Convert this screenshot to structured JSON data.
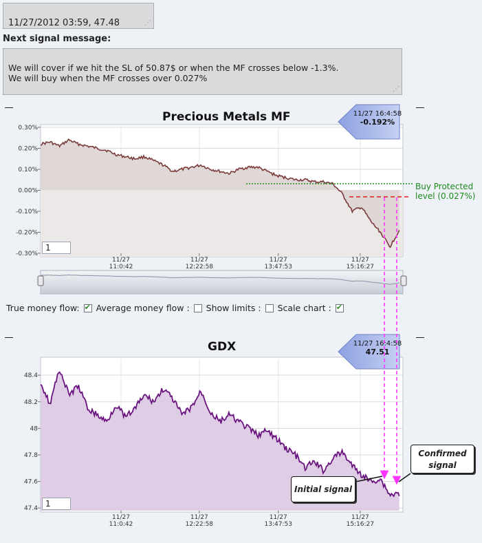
{
  "timestamp_box": {
    "value": "11/27/2012 03:59, 47.48"
  },
  "signal": {
    "label": "Next signal message:",
    "message": "We will cover if we hit the SL of 50.87$ or when the MF crosses below -1.3%.\nWe will buy when the MF crosses over 0.027%"
  },
  "mf_chart": {
    "title": "Precious Metals MF",
    "flag_time": "11/27 16:4:58",
    "flag_value": "-0.192%",
    "zoom_value": "1",
    "buy_protected_label": "Buy Protected level (0.027%)",
    "ytick_labels": [
      "0.30%",
      "0.20%",
      "0.10%",
      "0.00%",
      "-0.10%",
      "-0.20%",
      "-0.30%"
    ],
    "xtick_dates": [
      "11/27",
      "11/27",
      "11/27",
      "11/27"
    ],
    "xtick_times": [
      "11:0:42",
      "12:22:58",
      "13:47:53",
      "15:16:27"
    ]
  },
  "controls": {
    "true_money_flow": "True money flow:",
    "average_money_flow": "Average money flow :",
    "show_limits": "Show limits :",
    "scale_chart": "Scale chart :",
    "true_money_flow_checked": true,
    "average_money_flow_checked": false,
    "show_limits_checked": false,
    "scale_chart_checked": true
  },
  "gdx_chart": {
    "title": "GDX",
    "flag_time": "11/27 16:4:58",
    "flag_value": "47.51",
    "zoom_value": "1",
    "ytick_labels": [
      "48.4",
      "48.2",
      "48",
      "47.8",
      "47.6",
      "47.4"
    ],
    "xtick_dates": [
      "11/27",
      "11/27",
      "11/27",
      "11/27"
    ],
    "xtick_times": [
      "11:0:42",
      "12:22:58",
      "13:47:53",
      "15:16:27"
    ],
    "initial_signal_label": "Initial signal",
    "confirmed_signal_label": "Confirmed signal"
  },
  "colors": {
    "mf_line": "#7a3b3b",
    "mf_fill": "#ddd3d3",
    "gdx_line": "#6a1480",
    "gdx_fill": "#dcc8e2",
    "buy_protected_line": "#1d8a1d",
    "stop_line": "#e01b1b",
    "signal_arrows": "#ff33ff"
  },
  "chart_data": [
    {
      "type": "area",
      "title": "Precious Metals MF",
      "x_ticks": [
        "11/27 11:0:42",
        "11/27 12:22:58",
        "11/27 13:47:53",
        "11/27 15:16:27"
      ],
      "ylim": [
        -0.003,
        0.003
      ],
      "y_ticks": [
        0.003,
        0.002,
        0.001,
        0.0,
        -0.001,
        -0.002,
        -0.003
      ],
      "series": [
        {
          "values": [
            0.0022,
            0.0023,
            0.0021,
            0.0024,
            0.0022,
            0.0021,
            0.002,
            0.0019,
            0.0017,
            0.0016,
            0.0015,
            0.0016,
            0.0014,
            0.0012,
            0.0009,
            0.001,
            0.0011,
            0.0012,
            0.001,
            0.0009,
            0.0008,
            0.001,
            0.0011,
            0.0011,
            0.0009,
            0.0007,
            0.0006,
            0.0005,
            0.0005,
            0.0004,
            0.0004,
            0.0003,
            -0.0002,
            -0.001,
            -0.0008,
            -0.0015,
            -0.002,
            -0.0027,
            -0.0019
          ]
        }
      ],
      "reference_lines": [
        {
          "label": "Buy Protected level (0.027%)",
          "value": 0.00027
        },
        {
          "value": -0.00035
        }
      ]
    },
    {
      "type": "area",
      "title": "GDX",
      "x_ticks": [
        "11/27 11:0:42",
        "11/27 12:22:58",
        "11/27 13:47:53",
        "11/27 15:16:27"
      ],
      "ylim": [
        47.38,
        48.52
      ],
      "y_ticks": [
        48.4,
        48.2,
        48.0,
        47.8,
        47.6,
        47.4
      ],
      "series": [
        {
          "values": [
            48.35,
            48.18,
            48.45,
            48.25,
            48.32,
            48.15,
            48.1,
            48.05,
            48.18,
            48.08,
            48.15,
            48.25,
            48.2,
            48.3,
            48.22,
            48.1,
            48.16,
            48.28,
            48.12,
            48.05,
            48.1,
            48.05,
            48.0,
            47.95,
            47.98,
            47.92,
            47.85,
            47.8,
            47.7,
            47.75,
            47.68,
            47.78,
            47.82,
            47.72,
            47.65,
            47.6,
            47.62,
            47.5,
            47.51
          ]
        }
      ],
      "annotations": [
        "Initial signal",
        "Confirmed signal"
      ]
    }
  ]
}
